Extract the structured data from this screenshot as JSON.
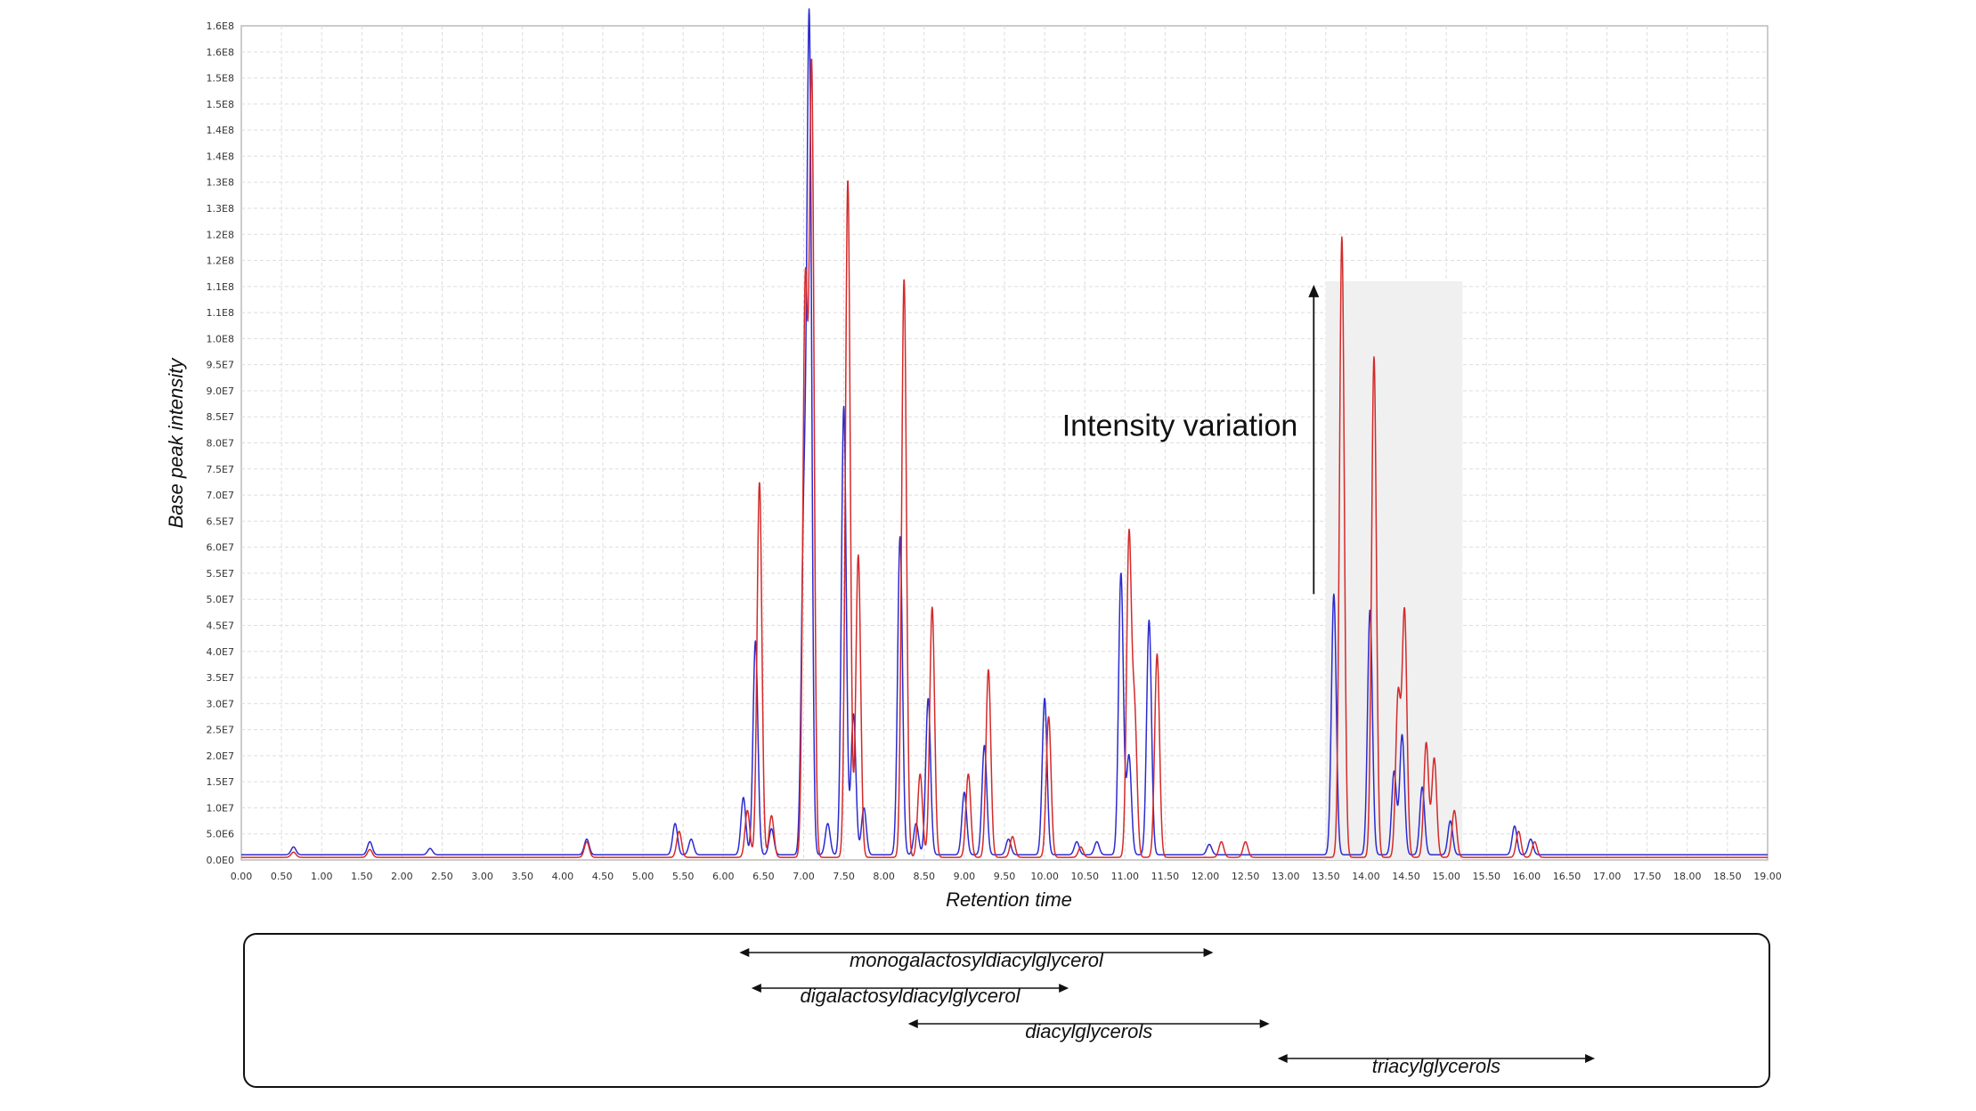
{
  "chart_data": {
    "type": "line",
    "xlabel": "Retention time",
    "ylabel": "Base peak intensity",
    "xlim": [
      0,
      19
    ],
    "ylim": [
      0,
      160000000
    ],
    "x_ticks": [
      "0.00",
      "0.50",
      "1.00",
      "1.50",
      "2.00",
      "2.50",
      "3.00",
      "3.50",
      "4.00",
      "4.50",
      "5.00",
      "5.50",
      "6.00",
      "6.50",
      "7.00",
      "7.50",
      "8.00",
      "8.50",
      "9.00",
      "9.50",
      "10.00",
      "10.50",
      "11.00",
      "11.50",
      "12.00",
      "12.50",
      "13.00",
      "13.50",
      "14.00",
      "14.50",
      "15.00",
      "15.50",
      "16.00",
      "16.50",
      "17.00",
      "17.50",
      "18.00",
      "18.50",
      "19.00"
    ],
    "y_ticks": [
      "0.0E0",
      "5.0E6",
      "1.0E7",
      "1.5E7",
      "2.0E7",
      "2.5E7",
      "3.0E7",
      "3.5E7",
      "4.0E7",
      "4.5E7",
      "5.0E7",
      "5.5E7",
      "6.0E7",
      "6.5E7",
      "7.0E7",
      "7.5E7",
      "8.0E7",
      "8.5E7",
      "9.0E7",
      "9.5E7",
      "1.0E8",
      "1.1E8",
      "1.1E8",
      "1.2E8",
      "1.2E8",
      "1.3E8",
      "1.3E8",
      "1.4E8",
      "1.4E8",
      "1.5E8",
      "1.5E8",
      "1.6E8",
      "1.6E8"
    ],
    "grid": true,
    "background_color": "#ffffff",
    "grid_color": "#dddddd",
    "series": [
      {
        "color": "#2b2bd0",
        "baseline": 1000000,
        "peaks": [
          [
            0.65,
            1500000
          ],
          [
            1.6,
            2500000
          ],
          [
            2.35,
            1200000
          ],
          [
            4.3,
            3000000
          ],
          [
            5.4,
            6000000
          ],
          [
            5.6,
            3000000
          ],
          [
            6.25,
            11000000
          ],
          [
            6.4,
            41000000
          ],
          [
            6.6,
            5000000
          ],
          [
            7.0,
            60000000
          ],
          [
            7.07,
            158000000
          ],
          [
            7.3,
            6000000
          ],
          [
            7.5,
            86000000
          ],
          [
            7.62,
            27000000
          ],
          [
            7.75,
            9000000
          ],
          [
            8.2,
            61000000
          ],
          [
            8.4,
            6000000
          ],
          [
            8.55,
            30000000
          ],
          [
            9.0,
            12000000
          ],
          [
            9.25,
            21000000
          ],
          [
            9.55,
            3000000
          ],
          [
            10.0,
            30000000
          ],
          [
            10.4,
            2500000
          ],
          [
            10.65,
            2500000
          ],
          [
            10.95,
            54000000
          ],
          [
            11.05,
            19000000
          ],
          [
            11.3,
            45000000
          ],
          [
            12.05,
            2000000
          ],
          [
            13.6,
            50000000
          ],
          [
            14.05,
            47000000
          ],
          [
            14.35,
            16000000
          ],
          [
            14.45,
            23000000
          ],
          [
            14.7,
            13000000
          ],
          [
            15.05,
            6500000
          ],
          [
            15.85,
            5500000
          ],
          [
            16.05,
            3000000
          ]
        ]
      },
      {
        "color": "#d42a2a",
        "baseline": 500000,
        "peaks": [
          [
            0.65,
            1000000
          ],
          [
            1.6,
            1500000
          ],
          [
            4.3,
            3000000
          ],
          [
            5.45,
            5000000
          ],
          [
            6.3,
            9000000
          ],
          [
            6.45,
            72000000
          ],
          [
            6.6,
            8000000
          ],
          [
            7.02,
            108000000
          ],
          [
            7.1,
            150000000
          ],
          [
            7.55,
            130000000
          ],
          [
            7.68,
            58000000
          ],
          [
            8.25,
            111000000
          ],
          [
            8.45,
            16000000
          ],
          [
            8.6,
            48000000
          ],
          [
            9.05,
            16000000
          ],
          [
            9.3,
            36000000
          ],
          [
            9.6,
            4000000
          ],
          [
            10.05,
            27000000
          ],
          [
            10.45,
            2000000
          ],
          [
            11.05,
            61000000
          ],
          [
            11.12,
            27000000
          ],
          [
            11.4,
            39000000
          ],
          [
            12.2,
            3000000
          ],
          [
            12.5,
            3000000
          ],
          [
            13.7,
            119000000
          ],
          [
            14.1,
            96000000
          ],
          [
            14.4,
            31000000
          ],
          [
            14.48,
            47000000
          ],
          [
            14.75,
            22000000
          ],
          [
            14.85,
            19000000
          ],
          [
            15.1,
            9000000
          ],
          [
            15.9,
            5000000
          ],
          [
            16.1,
            3000000
          ]
        ]
      }
    ],
    "highlight_region": {
      "x": [
        13.5,
        15.2
      ],
      "y": [
        0,
        111000000
      ],
      "color": "#f0f0f0"
    },
    "annotation": {
      "text": "Intensity variation",
      "arrow_x": 13.35,
      "arrow_from_y": 51000000,
      "arrow_to_y": 110000000
    },
    "ranges": [
      {
        "label": "monogalactosyldiacylglycerol",
        "x": [
          6.2,
          12.1
        ]
      },
      {
        "label": "digalactosyldiacylglycerol",
        "x": [
          6.35,
          10.3
        ]
      },
      {
        "label": "diacylglycerols",
        "x": [
          8.3,
          12.8
        ]
      },
      {
        "label": "triacylglycerols",
        "x": [
          12.9,
          16.85
        ]
      }
    ]
  }
}
